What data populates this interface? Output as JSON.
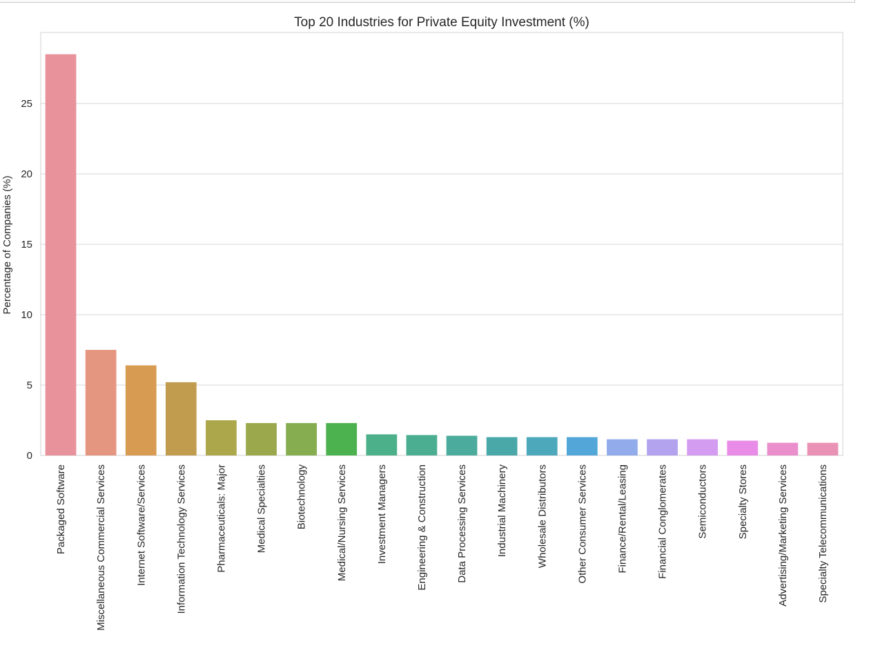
{
  "chart_data": {
    "type": "bar",
    "title": "Top 20 Industries for Private Equity Investment (%)",
    "xlabel": "",
    "ylabel": "Percentage of Companies (%)",
    "ylim": [
      0,
      30
    ],
    "yticks": [
      0,
      5,
      10,
      15,
      20,
      25
    ],
    "grid": true,
    "legend": "none",
    "categories": [
      "Packaged Software",
      "Miscellaneous Commercial Services",
      "Internet Software/Services",
      "Information Technology Services",
      "Pharmaceuticals: Major",
      "Medical Specialties",
      "Biotechnology",
      "Medical/Nursing Services",
      "Investment Managers",
      "Engineering & Construction",
      "Data Processing Services",
      "Industrial Machinery",
      "Wholesale Distributors",
      "Other Consumer Services",
      "Finance/Rental/Leasing",
      "Financial Conglomerates",
      "Semiconductors",
      "Specialty Stores",
      "Advertising/Marketing Services",
      "Specialty Telecommunications"
    ],
    "values": [
      28.5,
      7.5,
      6.4,
      5.2,
      2.5,
      2.3,
      2.3,
      2.3,
      1.5,
      1.45,
      1.4,
      1.3,
      1.3,
      1.3,
      1.15,
      1.15,
      1.15,
      1.05,
      0.9,
      0.9
    ],
    "colors": [
      "#e8929c",
      "#e59680",
      "#d89b52",
      "#c19c4f",
      "#ada74c",
      "#9ba84c",
      "#86ad4f",
      "#4cb14f",
      "#4cb08a",
      "#4bae91",
      "#4bab9c",
      "#4aa9a8",
      "#4ca8ba",
      "#53a7d8",
      "#92aceb",
      "#b3a3ef",
      "#d49cf0",
      "#e98ce7",
      "#ea8fcb",
      "#ea92b5"
    ]
  }
}
